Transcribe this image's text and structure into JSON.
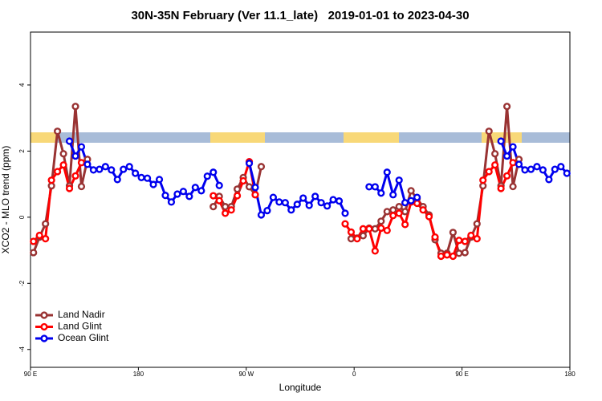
{
  "chart_data": {
    "type": "line",
    "title": "30N-35N February (Ver 11.1_late)   2019-01-01 to 2023-04-30",
    "x_label": "Longitude",
    "y_label": "XCO2 - MLO trend (ppm)",
    "xlim": [
      90,
      540
    ],
    "xticks": [
      {
        "value": 90,
        "label": "90 E"
      },
      180,
      {
        "value": 270,
        "label": "90 W"
      },
      {
        "value": 360,
        "label": "0"
      },
      {
        "value": 450,
        "label": "90 E"
      },
      {
        "value": 540,
        "label": "180"
      }
    ],
    "ylim": [
      -4.54,
      5.6
    ],
    "yticks": [
      -4,
      -2,
      0,
      2,
      4
    ],
    "legend": "bottomleft",
    "x": [
      92.5,
      97.5,
      102.5,
      107.5,
      112.5,
      117.5,
      122.5,
      127.5,
      132.5,
      137.5,
      142.5,
      147.5,
      152.5,
      157.5,
      162.5,
      167.5,
      172.5,
      177.5,
      182.5,
      187.5,
      192.5,
      197.5,
      202.5,
      207.5,
      212.5,
      217.5,
      222.5,
      227.5,
      232.5,
      237.5,
      242.5,
      247.5,
      252.5,
      257.5,
      262.5,
      267.5,
      272.5,
      277.5,
      282.5,
      287.5,
      292.5,
      297.5,
      302.5,
      307.5,
      312.5,
      317.5,
      322.5,
      327.5,
      332.5,
      337.5,
      342.5,
      347.5,
      352.5,
      357.5,
      362.5,
      367.5,
      372.5,
      377.5,
      382.5,
      387.5,
      392.5,
      397.5,
      402.5,
      407.5,
      412.5,
      417.5,
      422.5,
      427.5,
      432.5,
      437.5,
      442.5,
      447.5,
      452.5,
      457.5,
      462.5,
      467.5,
      472.5,
      477.5,
      482.5,
      487.5,
      492.5,
      497.5,
      502.5,
      507.5,
      512.5,
      517.5,
      522.5,
      527.5,
      532.5,
      537.5
    ],
    "series": [
      {
        "name": "Land Nadir",
        "color": "#993333",
        "values": [
          -1.07,
          -0.6,
          -0.2,
          0.95,
          2.6,
          1.92,
          0.95,
          3.35,
          0.93,
          1.75,
          null,
          null,
          null,
          null,
          null,
          null,
          null,
          null,
          null,
          null,
          null,
          null,
          null,
          null,
          null,
          null,
          null,
          null,
          null,
          null,
          0.32,
          0.63,
          0.32,
          0.32,
          0.85,
          1.2,
          0.92,
          0.68,
          1.53,
          null,
          null,
          null,
          null,
          null,
          null,
          null,
          null,
          null,
          null,
          null,
          null,
          null,
          null,
          -0.65,
          -0.63,
          -0.56,
          -0.33,
          -0.35,
          -0.12,
          0.17,
          0.22,
          0.32,
          0.17,
          0.8,
          0.56,
          0.32,
          0.07,
          -0.68,
          -1.09,
          -1.09,
          -0.46,
          -1.09,
          -1.07,
          -0.6,
          -0.2,
          0.95,
          2.6,
          1.92,
          0.95,
          3.35,
          0.93,
          1.75,
          null,
          null,
          null,
          null,
          null,
          null,
          null,
          null
        ]
      },
      {
        "name": "Land Glint",
        "color": "#ff0000",
        "values": [
          -0.73,
          -0.55,
          -0.65,
          1.12,
          1.38,
          1.58,
          0.87,
          1.25,
          1.65,
          null,
          null,
          null,
          null,
          null,
          null,
          null,
          null,
          null,
          null,
          null,
          null,
          null,
          null,
          null,
          null,
          null,
          null,
          null,
          null,
          null,
          0.65,
          0.5,
          0.12,
          0.22,
          0.65,
          1.1,
          1.68,
          0.68,
          null,
          null,
          null,
          null,
          null,
          null,
          null,
          null,
          null,
          null,
          null,
          null,
          null,
          null,
          -0.2,
          -0.45,
          -0.65,
          -0.35,
          -0.35,
          -1.02,
          -0.33,
          -0.4,
          0.05,
          0.12,
          -0.22,
          0.46,
          0.42,
          0.22,
          0.02,
          -0.6,
          -1.18,
          -1.14,
          -1.18,
          -0.7,
          -0.73,
          -0.55,
          -0.65,
          1.12,
          1.38,
          1.58,
          0.87,
          1.25,
          1.65,
          null,
          null,
          null,
          null,
          null,
          null,
          null,
          null,
          null
        ]
      },
      {
        "name": "Ocean Glint",
        "color": "#0000ee",
        "values": [
          null,
          null,
          null,
          null,
          null,
          null,
          2.3,
          1.85,
          2.13,
          1.6,
          1.43,
          1.45,
          1.53,
          1.43,
          1.14,
          1.45,
          1.53,
          1.33,
          1.2,
          1.18,
          0.99,
          1.14,
          0.66,
          0.46,
          0.7,
          0.78,
          0.63,
          0.9,
          0.8,
          1.24,
          1.36,
          0.96,
          null,
          null,
          null,
          null,
          1.63,
          0.9,
          0.07,
          0.2,
          0.6,
          0.46,
          0.44,
          0.22,
          0.39,
          0.58,
          0.36,
          0.63,
          0.44,
          0.34,
          0.53,
          0.49,
          0.12,
          null,
          null,
          null,
          0.92,
          0.92,
          0.73,
          1.36,
          0.68,
          1.12,
          0.44,
          0.5,
          0.6,
          null,
          null,
          null,
          null,
          null,
          null,
          null,
          null,
          null,
          null,
          null,
          null,
          null,
          2.3,
          1.85,
          2.13,
          1.6,
          1.43,
          1.45,
          1.53,
          1.43,
          1.14,
          1.45,
          1.53,
          1.33
        ]
      }
    ]
  }
}
